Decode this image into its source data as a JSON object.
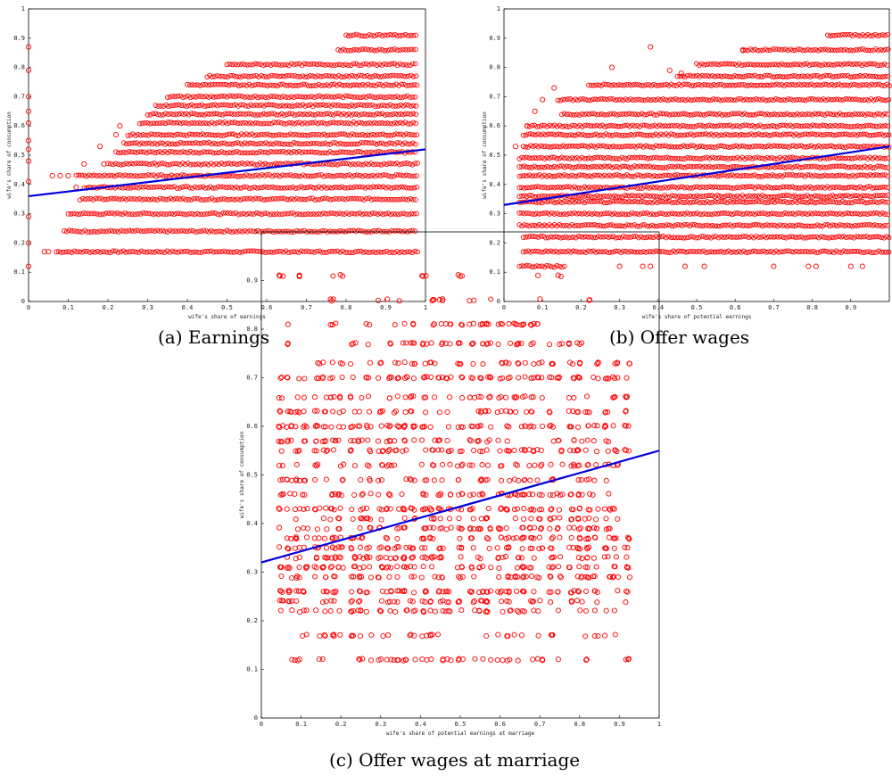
{
  "chart_data": [
    {
      "type": "scatter",
      "panel": "a",
      "caption": "(a) Earnings",
      "xlabel": "wife's share of earnings",
      "ylabel": "wife's share of consumption",
      "xlim": [
        0,
        1
      ],
      "ylim": [
        0,
        1
      ],
      "x_ticks": [
        "0",
        "0.1",
        "0.2",
        "0.3",
        "0.4",
        "0.5",
        "0.6",
        "0.7",
        "0.8",
        "0.9",
        "1"
      ],
      "y_ticks": [
        "0",
        "0.1",
        "0.2",
        "0.3",
        "0.4",
        "0.5",
        "0.6",
        "0.7",
        "0.8",
        "0.9",
        "1"
      ],
      "x_tick_values": [
        0,
        0.1,
        0.2,
        0.3,
        0.4,
        0.5,
        0.6,
        0.7,
        0.8,
        0.9,
        1
      ],
      "y_tick_values": [
        0,
        0.1,
        0.2,
        0.3,
        0.4,
        0.5,
        0.6,
        0.7,
        0.8,
        0.9,
        1
      ],
      "points_style": "red open circles",
      "consumption_levels": [
        0.17,
        0.24,
        0.3,
        0.35,
        0.39,
        0.43,
        0.47,
        0.51,
        0.54,
        0.57,
        0.61,
        0.64,
        0.67,
        0.7,
        0.74,
        0.77,
        0.81,
        0.86,
        0.91
      ],
      "level_x_ranges": [
        [
          0.07,
          0.98
        ],
        [
          0.09,
          0.98
        ],
        [
          0.1,
          0.98
        ],
        [
          0.13,
          0.98
        ],
        [
          0.14,
          0.98
        ],
        [
          0.12,
          0.98
        ],
        [
          0.2,
          0.98
        ],
        [
          0.22,
          0.98
        ],
        [
          0.24,
          0.98
        ],
        [
          0.25,
          0.98
        ],
        [
          0.28,
          0.98
        ],
        [
          0.3,
          0.98
        ],
        [
          0.32,
          0.98
        ],
        [
          0.35,
          0.98
        ],
        [
          0.4,
          0.98
        ],
        [
          0.45,
          0.98
        ],
        [
          0.5,
          0.98
        ],
        [
          0.78,
          0.98
        ],
        [
          0.8,
          0.98
        ]
      ],
      "sparse_points": [
        [
          0,
          0.12
        ],
        [
          0,
          0.2
        ],
        [
          0,
          0.29
        ],
        [
          0,
          0.41
        ],
        [
          0,
          0.48
        ],
        [
          0,
          0.52
        ],
        [
          0,
          0.55
        ],
        [
          0,
          0.61
        ],
        [
          0,
          0.65
        ],
        [
          0,
          0.7
        ],
        [
          0,
          0.79
        ],
        [
          0,
          0.87
        ],
        [
          0.04,
          0.17
        ],
        [
          0.05,
          0.17
        ],
        [
          0.06,
          0.43
        ],
        [
          0.08,
          0.43
        ],
        [
          0.1,
          0.43
        ],
        [
          0.12,
          0.39
        ],
        [
          0.14,
          0.47
        ],
        [
          0.19,
          0.47
        ],
        [
          0.18,
          0.53
        ],
        [
          0.22,
          0.57
        ],
        [
          0.23,
          0.6
        ]
      ],
      "fit_line": {
        "x": [
          0,
          1
        ],
        "y": [
          0.36,
          0.52
        ]
      }
    },
    {
      "type": "scatter",
      "panel": "b",
      "caption": "(b) Offer wages",
      "xlabel": "wife's share of potential earnings",
      "ylabel": "wife's share of consumption",
      "xlim": [
        0,
        1
      ],
      "ylim": [
        0,
        1
      ],
      "x_ticks": [
        "0",
        "0.1",
        "0.2",
        "0.3",
        "0.4",
        "0.5",
        "0.6",
        "0.7",
        "0.8",
        "0.9"
      ],
      "y_ticks": [
        "0",
        "0.1",
        "0.2",
        "0.3",
        "0.4",
        "0.5",
        "0.6",
        "0.7",
        "0.8",
        "0.9",
        "1"
      ],
      "x_tick_values": [
        0,
        0.1,
        0.2,
        0.3,
        0.4,
        0.5,
        0.6,
        0.7,
        0.8,
        0.9
      ],
      "y_tick_values": [
        0,
        0.1,
        0.2,
        0.3,
        0.4,
        0.5,
        0.6,
        0.7,
        0.8,
        0.9,
        1
      ],
      "points_style": "red open circles",
      "consumption_levels": [
        0.12,
        0.17,
        0.22,
        0.26,
        0.3,
        0.34,
        0.36,
        0.39,
        0.43,
        0.46,
        0.49,
        0.53,
        0.57,
        0.6,
        0.64,
        0.69,
        0.74,
        0.77,
        0.81,
        0.86,
        0.91
      ],
      "level_x_ranges": [
        [
          0.04,
          0.16
        ],
        [
          0.05,
          1
        ],
        [
          0.05,
          1
        ],
        [
          0.04,
          1
        ],
        [
          0.04,
          1
        ],
        [
          0.04,
          1
        ],
        [
          0.04,
          1
        ],
        [
          0.04,
          1
        ],
        [
          0.04,
          1
        ],
        [
          0.04,
          1
        ],
        [
          0.04,
          1
        ],
        [
          0.05,
          1
        ],
        [
          0.05,
          1
        ],
        [
          0.06,
          1
        ],
        [
          0.15,
          1
        ],
        [
          0.14,
          1
        ],
        [
          0.22,
          1
        ],
        [
          0.45,
          1
        ],
        [
          0.5,
          1
        ],
        [
          0.62,
          1
        ],
        [
          0.84,
          1
        ]
      ],
      "sparse_points": [
        [
          0.03,
          0.53
        ],
        [
          0.06,
          0.6
        ],
        [
          0.08,
          0.65
        ],
        [
          0.1,
          0.69
        ],
        [
          0.13,
          0.73
        ],
        [
          0.38,
          0.87
        ],
        [
          0.46,
          0.78
        ],
        [
          0.43,
          0.79
        ],
        [
          0.28,
          0.8
        ],
        [
          0.62,
          0.86
        ],
        [
          0.36,
          0.12
        ],
        [
          0.38,
          0.12
        ],
        [
          0.47,
          0.12
        ],
        [
          0.52,
          0.12
        ],
        [
          0.7,
          0.12
        ],
        [
          0.79,
          0.12
        ],
        [
          0.81,
          0.12
        ],
        [
          0.9,
          0.12
        ],
        [
          0.93,
          0.12
        ],
        [
          0.3,
          0.12
        ]
      ],
      "fit_line": {
        "x": [
          0,
          1
        ],
        "y": [
          0.33,
          0.53
        ]
      }
    },
    {
      "type": "scatter",
      "panel": "c",
      "caption": "(c) Offer wages at marriage",
      "xlabel": "wife's share of potential earnings at marriage",
      "ylabel": "wife's share of consumption",
      "xlim": [
        0,
        1
      ],
      "ylim": [
        0,
        1
      ],
      "x_ticks": [
        "0",
        "0.1",
        "0.2",
        "0.3",
        "0.4",
        "0.5",
        "0.6",
        "0.7",
        "0.8",
        "0.9",
        "1"
      ],
      "y_ticks": [
        "0",
        "0.1",
        "0.2",
        "0.3",
        "0.4",
        "0.5",
        "0.6",
        "0.7",
        "0.8",
        "0.9",
        "1"
      ],
      "x_tick_values": [
        0,
        0.1,
        0.2,
        0.3,
        0.4,
        0.5,
        0.6,
        0.7,
        0.8,
        0.9,
        1
      ],
      "y_tick_values": [
        0,
        0.1,
        0.2,
        0.3,
        0.4,
        0.5,
        0.6,
        0.7,
        0.8,
        0.9,
        1
      ],
      "points_style": "red open circles",
      "x_clusters": [
        0.05,
        0.07,
        0.09,
        0.11,
        0.14,
        0.16,
        0.18,
        0.2,
        0.23,
        0.25,
        0.27,
        0.3,
        0.32,
        0.34,
        0.36,
        0.38,
        0.41,
        0.43,
        0.45,
        0.47,
        0.5,
        0.53,
        0.55,
        0.57,
        0.6,
        0.62,
        0.64,
        0.66,
        0.68,
        0.7,
        0.73,
        0.75,
        0.78,
        0.8,
        0.82,
        0.84,
        0.87,
        0.89,
        0.92
      ],
      "consumption_levels": [
        0.12,
        0.17,
        0.22,
        0.24,
        0.26,
        0.29,
        0.31,
        0.33,
        0.35,
        0.37,
        0.39,
        0.41,
        0.43,
        0.46,
        0.49,
        0.52,
        0.55,
        0.57,
        0.6,
        0.63,
        0.66,
        0.7,
        0.73,
        0.77,
        0.81,
        0.86,
        0.91
      ],
      "fit_line": {
        "x": [
          0,
          1
        ],
        "y": [
          0.32,
          0.55
        ]
      }
    }
  ]
}
